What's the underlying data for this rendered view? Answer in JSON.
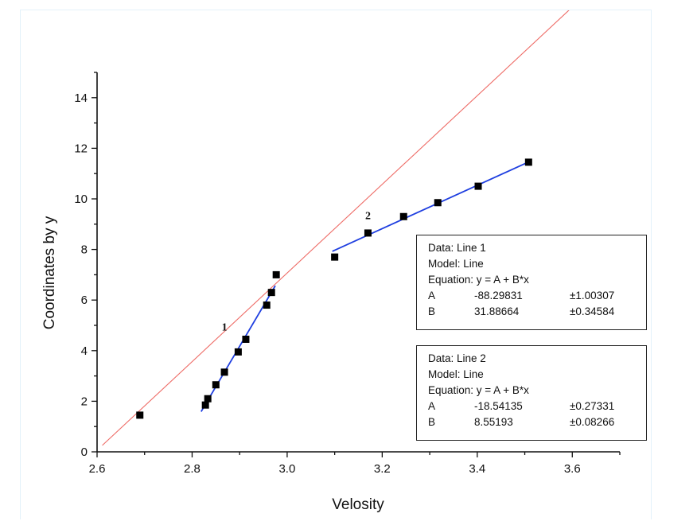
{
  "chart_data": {
    "type": "scatter",
    "xlabel": "Velosity",
    "ylabel": "Coordinates by y",
    "xlim": [
      2.6,
      3.7
    ],
    "ylim": [
      0,
      15
    ],
    "x_ticks": [
      "2.6",
      "2.8",
      "3.0",
      "3.2",
      "3.4",
      "3.6"
    ],
    "y_ticks": [
      "0",
      "2",
      "4",
      "6",
      "8",
      "10",
      "12",
      "14"
    ],
    "points": [
      {
        "x": 2.69,
        "y": 1.45
      },
      {
        "x": 2.828,
        "y": 1.85
      },
      {
        "x": 2.833,
        "y": 2.1
      },
      {
        "x": 2.85,
        "y": 2.65
      },
      {
        "x": 2.868,
        "y": 3.15
      },
      {
        "x": 2.897,
        "y": 3.95
      },
      {
        "x": 2.913,
        "y": 4.45
      },
      {
        "x": 2.957,
        "y": 5.8
      },
      {
        "x": 2.967,
        "y": 6.3
      },
      {
        "x": 2.977,
        "y": 7.0
      },
      {
        "x": 3.1,
        "y": 7.7
      },
      {
        "x": 3.17,
        "y": 8.65
      },
      {
        "x": 3.245,
        "y": 9.3
      },
      {
        "x": 3.317,
        "y": 9.85
      },
      {
        "x": 3.402,
        "y": 10.5
      },
      {
        "x": 3.508,
        "y": 11.45
      }
    ],
    "fit_lines": [
      {
        "label": "1",
        "color": "#1f3fe0",
        "A": -88.29831,
        "B": 31.88664,
        "x_range": [
          2.819,
          2.975
        ],
        "label_at": {
          "x": 2.868,
          "y": 4.8
        }
      },
      {
        "label": "2",
        "color": "#1f3fe0",
        "A": -18.54135,
        "B": 8.55193,
        "x_range": [
          3.095,
          3.505
        ],
        "label_at": {
          "x": 3.17,
          "y": 9.2
        }
      },
      {
        "label": "",
        "color": "#ee6b66",
        "A": -45.49,
        "B": 17.52,
        "x_range": [
          2.611,
          3.615
        ]
      }
    ],
    "legend_boxes": [
      {
        "data": "Data: Line 1",
        "model": "Model: Line",
        "equation": "Equation: y = A + B*x",
        "A": {
          "name": "A",
          "value": "-88.29831",
          "error": "±1.00307"
        },
        "B": {
          "name": "B",
          "value": "31.88664",
          "error": "±0.34584"
        }
      },
      {
        "data": "Data: Line 2",
        "model": "Model: Line",
        "equation": "Equation: y = A + B*x",
        "A": {
          "name": "A",
          "value": "-18.54135",
          "error": "±0.27331"
        },
        "B": {
          "name": "B",
          "value": "8.55193",
          "error": "±0.08266"
        }
      }
    ],
    "legend_placement": "right",
    "grid": false
  }
}
